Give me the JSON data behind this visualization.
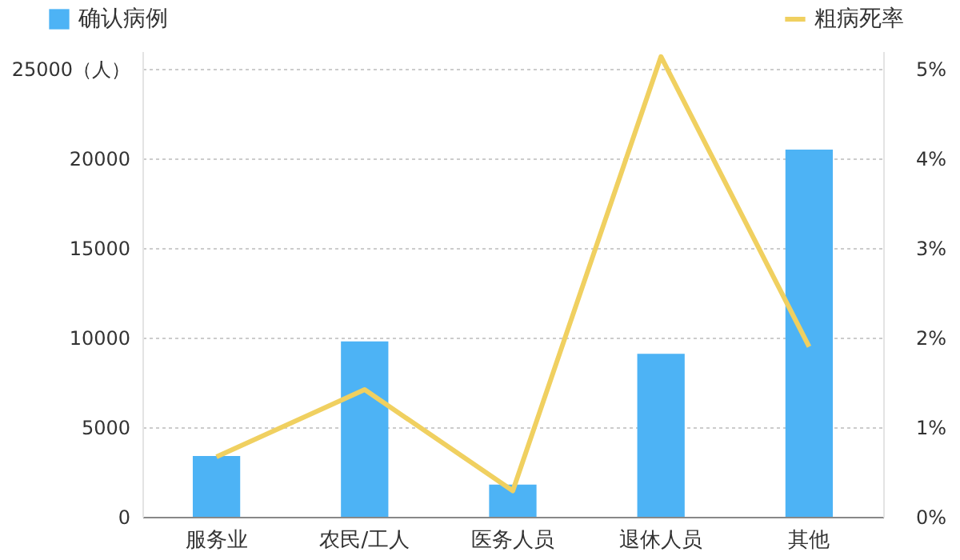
{
  "chart_data": {
    "type": "bar",
    "categories": [
      "服务业",
      "农民/工人",
      "医务人员",
      "退休人员",
      "其他"
    ],
    "series": [
      {
        "name": "确认病例",
        "color": "#4db3f5",
        "values": [
          3400,
          9800,
          1800,
          9100,
          20500
        ]
      },
      {
        "name": "粗病死率",
        "type": "line",
        "axis": "y2",
        "color": "#f0d060",
        "values": [
          0.67,
          1.42,
          0.29,
          5.14,
          1.9
        ]
      }
    ],
    "ylim": [
      0,
      26000
    ],
    "yticks": [
      0,
      5000,
      10000,
      15000,
      20000,
      {
        "value": 25000,
        "label": "25000（人）"
      }
    ],
    "y2lim": [
      0,
      5.2
    ],
    "y2ticks": [
      {
        "value": 0,
        "label": "0%"
      },
      {
        "value": 1,
        "label": "1%"
      },
      {
        "value": 2,
        "label": "2%"
      },
      {
        "value": 3,
        "label": "3%"
      },
      {
        "value": 4,
        "label": "4%"
      },
      {
        "value": 5,
        "label": "5%"
      }
    ],
    "grid": "y",
    "legend": "top",
    "marker": "none",
    "line_style": "solid"
  }
}
